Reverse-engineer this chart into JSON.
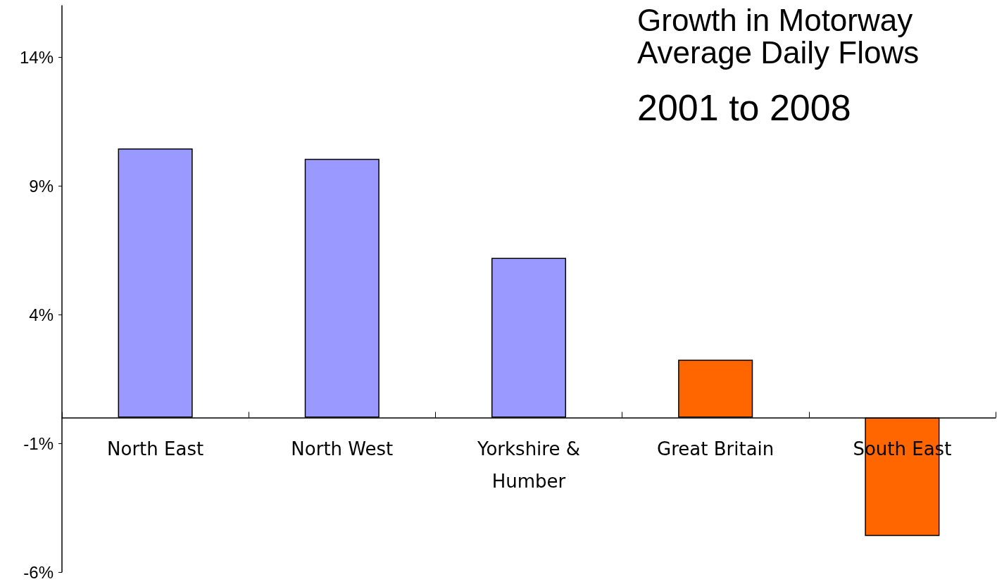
{
  "chart_data": {
    "type": "bar",
    "title": "Growth in Motorway\nAverage Daily Flows",
    "subtitle": "2001 to 2008",
    "categories": [
      "North East",
      "North West",
      "Yorkshire &\nHumber",
      "Great Britain",
      "South East"
    ],
    "values": [
      10.45,
      10.05,
      6.2,
      2.25,
      -4.6
    ],
    "colors": [
      "#9999ff",
      "#9999ff",
      "#9999ff",
      "#ff6600",
      "#ff6600"
    ],
    "ylim": [
      -6,
      16
    ],
    "yticks": [
      {
        "value": -6,
        "label": "-6%"
      },
      {
        "value": -1,
        "label": "-1%"
      },
      {
        "value": 4,
        "label": "4%"
      },
      {
        "value": 9,
        "label": "9%"
      },
      {
        "value": 14,
        "label": "14%"
      }
    ],
    "grid": false
  }
}
